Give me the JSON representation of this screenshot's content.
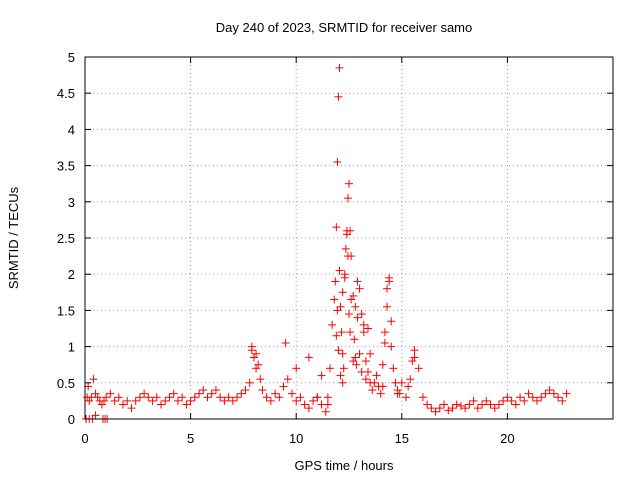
{
  "chart_data": {
    "type": "scatter",
    "title": "Day 240 of 2023, SRMTID for receiver samo",
    "xlabel": "GPS time / hours",
    "ylabel": "SRMTID / TECUs",
    "xlim": [
      0,
      25
    ],
    "ylim": [
      0,
      5
    ],
    "x_ticks": [
      0,
      5,
      10,
      15,
      20
    ],
    "x_tick_labels": [
      "0",
      "5",
      "10",
      "15",
      "20"
    ],
    "y_ticks": [
      0,
      0.5,
      1,
      1.5,
      2,
      2.5,
      3,
      3.5,
      4,
      4.5,
      5
    ],
    "y_tick_labels": [
      "0",
      "0.5",
      "1",
      "1.5",
      "2",
      "2.5",
      "3",
      "3.5",
      "4",
      "4.5",
      "5"
    ],
    "grid": true,
    "marker": "plus",
    "color": "#ff0000",
    "series": [
      {
        "name": "SRMTID",
        "x": [
          0.05,
          0.1,
          0.15,
          0.2,
          0.3,
          0.4,
          0.5,
          0.6,
          0.7,
          0.8,
          0.9,
          1.0,
          1.2,
          1.4,
          1.6,
          1.8,
          2.0,
          2.2,
          2.4,
          2.6,
          2.8,
          3.0,
          3.2,
          3.4,
          3.6,
          3.8,
          4.0,
          4.2,
          4.4,
          4.6,
          4.8,
          5.0,
          5.2,
          5.4,
          5.6,
          5.8,
          6.0,
          6.2,
          6.4,
          6.6,
          6.8,
          7.0,
          7.2,
          7.4,
          7.6,
          7.8,
          7.9,
          8.0,
          8.1,
          8.2,
          8.3,
          8.4,
          8.6,
          8.8,
          9.0,
          9.2,
          9.4,
          9.6,
          9.8,
          10.0,
          10.2,
          10.4,
          10.6,
          10.8,
          11.0,
          11.2,
          11.4,
          11.5,
          11.6,
          11.7,
          11.8,
          11.85,
          11.9,
          11.95,
          12.0,
          12.05,
          12.1,
          12.15,
          12.2,
          12.25,
          12.3,
          12.35,
          12.4,
          12.45,
          12.5,
          12.55,
          12.6,
          12.7,
          12.8,
          12.9,
          13.0,
          13.1,
          13.2,
          13.3,
          13.4,
          13.5,
          13.6,
          13.7,
          13.8,
          13.9,
          14.0,
          14.1,
          14.2,
          14.3,
          14.4,
          14.5,
          14.6,
          14.7,
          14.8,
          14.9,
          15.0,
          15.2,
          15.4,
          15.6,
          15.8,
          16.0,
          16.2,
          16.4,
          16.6,
          16.8,
          17.0,
          17.2,
          17.4,
          17.6,
          17.8,
          18.0,
          18.2,
          18.4,
          18.6,
          18.8,
          19.0,
          19.2,
          19.4,
          19.6,
          19.8,
          20.0,
          20.2,
          20.4,
          20.6,
          20.8,
          21.0,
          21.2,
          21.4,
          21.6,
          21.8,
          22.0,
          22.2,
          22.4,
          22.6,
          22.8,
          0.05,
          0.2,
          0.35,
          0.5,
          0.85,
          0.95,
          1.05,
          11.95,
          12.3,
          12.9,
          12.05,
          12.6,
          13.2,
          11.0,
          11.5,
          12.2,
          12.4,
          12.45,
          12.5,
          12.55,
          12.75,
          12.8,
          12.85,
          13.0,
          13.1,
          13.3,
          13.4,
          14.3,
          14.4,
          14.5,
          15.5,
          15.6,
          11.9,
          12.0,
          12.1,
          12.2,
          12.7,
          13.5,
          14.1,
          14.2,
          10.0,
          9.5,
          8.0,
          8.1,
          7.9,
          10.6,
          11.2,
          14.8,
          15.3
        ],
        "y": [
          0.0,
          0.3,
          0.45,
          0.25,
          0.3,
          0.55,
          0.35,
          0.3,
          0.25,
          0.2,
          0.25,
          0.3,
          0.35,
          0.25,
          0.3,
          0.2,
          0.25,
          0.15,
          0.25,
          0.3,
          0.35,
          0.3,
          0.25,
          0.3,
          0.2,
          0.25,
          0.3,
          0.35,
          0.25,
          0.3,
          0.2,
          0.25,
          0.3,
          0.35,
          0.4,
          0.3,
          0.35,
          0.4,
          0.3,
          0.25,
          0.3,
          0.25,
          0.3,
          0.35,
          0.4,
          0.5,
          0.95,
          0.85,
          0.7,
          0.75,
          0.55,
          0.4,
          0.3,
          0.25,
          0.35,
          0.3,
          0.45,
          0.55,
          0.35,
          0.25,
          0.3,
          0.2,
          0.15,
          0.25,
          0.3,
          0.2,
          0.1,
          0.3,
          0.7,
          1.3,
          1.65,
          1.9,
          2.65,
          3.55,
          4.45,
          4.85,
          1.55,
          1.2,
          0.9,
          0.7,
          2.0,
          2.35,
          2.55,
          3.05,
          3.25,
          2.6,
          2.25,
          1.7,
          1.55,
          1.9,
          1.8,
          1.45,
          1.2,
          0.8,
          0.65,
          0.5,
          0.4,
          0.5,
          0.6,
          0.45,
          0.35,
          0.75,
          1.2,
          1.55,
          1.9,
          1.0,
          0.7,
          0.5,
          0.4,
          0.35,
          0.5,
          0.3,
          0.55,
          0.95,
          0.7,
          0.3,
          0.2,
          0.15,
          0.1,
          0.15,
          0.2,
          0.12,
          0.15,
          0.2,
          0.18,
          0.15,
          0.2,
          0.25,
          0.15,
          0.2,
          0.25,
          0.2,
          0.15,
          0.2,
          0.25,
          0.3,
          0.25,
          0.2,
          0.3,
          0.25,
          0.35,
          0.3,
          0.25,
          0.3,
          0.35,
          0.4,
          0.35,
          0.3,
          0.25,
          0.35,
          0.0,
          0.0,
          0.0,
          0.05,
          0.0,
          0.0,
          0.0,
          1.5,
          1.95,
          1.4,
          2.05,
          1.65,
          1.3,
          0.3,
          0.2,
          1.75,
          2.6,
          2.25,
          1.45,
          1.2,
          1.1,
          0.85,
          0.75,
          0.9,
          0.65,
          0.55,
          1.25,
          1.8,
          1.95,
          1.35,
          0.8,
          0.85,
          1.15,
          0.95,
          0.6,
          0.5,
          0.8,
          0.9,
          0.45,
          1.05,
          0.7,
          1.05,
          0.85,
          0.9,
          1.0,
          0.85,
          0.6,
          0.35,
          0.45
        ]
      }
    ]
  }
}
